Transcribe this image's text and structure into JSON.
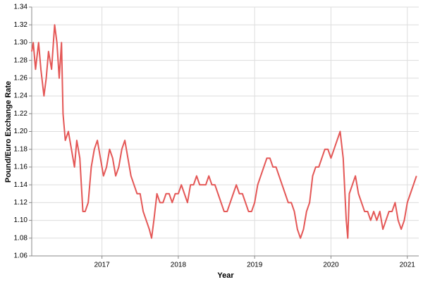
{
  "chart_data": {
    "type": "line",
    "x_label": "Year",
    "y_label": "Pound/Euro Exchange Rate",
    "x": [
      2016.08,
      2016.1,
      2016.13,
      2016.17,
      2016.2,
      2016.24,
      2016.27,
      2016.3,
      2016.34,
      2016.38,
      2016.41,
      2016.44,
      2016.47,
      2016.49,
      2016.52,
      2016.56,
      2016.6,
      2016.64,
      2016.67,
      2016.71,
      2016.75,
      2016.78,
      2016.82,
      2016.86,
      2016.9,
      2016.94,
      2016.98,
      2017.02,
      2017.06,
      2017.1,
      2017.14,
      2017.18,
      2017.22,
      2017.26,
      2017.3,
      2017.34,
      2017.38,
      2017.42,
      2017.46,
      2017.5,
      2017.54,
      2017.58,
      2017.62,
      2017.65,
      2017.68,
      2017.72,
      2017.76,
      2017.8,
      2017.84,
      2017.88,
      2017.92,
      2017.96,
      2018.0,
      2018.04,
      2018.08,
      2018.12,
      2018.16,
      2018.2,
      2018.24,
      2018.28,
      2018.32,
      2018.36,
      2018.4,
      2018.44,
      2018.48,
      2018.52,
      2018.56,
      2018.6,
      2018.64,
      2018.68,
      2018.72,
      2018.76,
      2018.8,
      2018.84,
      2018.88,
      2018.92,
      2018.96,
      2019.0,
      2019.04,
      2019.08,
      2019.12,
      2019.16,
      2019.2,
      2019.24,
      2019.28,
      2019.32,
      2019.36,
      2019.4,
      2019.44,
      2019.48,
      2019.52,
      2019.56,
      2019.6,
      2019.64,
      2019.68,
      2019.72,
      2019.76,
      2019.8,
      2019.84,
      2019.88,
      2019.92,
      2019.96,
      2020.0,
      2020.04,
      2020.08,
      2020.12,
      2020.16,
      2020.2,
      2020.22,
      2020.24,
      2020.28,
      2020.32,
      2020.36,
      2020.4,
      2020.44,
      2020.48,
      2020.52,
      2020.56,
      2020.6,
      2020.64,
      2020.68,
      2020.72,
      2020.76,
      2020.8,
      2020.84,
      2020.88,
      2020.92,
      2020.96,
      2021.0,
      2021.04,
      2021.08,
      2021.12
    ],
    "values": [
      1.29,
      1.3,
      1.27,
      1.3,
      1.27,
      1.24,
      1.26,
      1.29,
      1.27,
      1.32,
      1.3,
      1.26,
      1.3,
      1.22,
      1.19,
      1.2,
      1.18,
      1.16,
      1.19,
      1.17,
      1.11,
      1.11,
      1.12,
      1.16,
      1.18,
      1.19,
      1.17,
      1.15,
      1.16,
      1.18,
      1.17,
      1.15,
      1.16,
      1.18,
      1.19,
      1.17,
      1.15,
      1.14,
      1.13,
      1.13,
      1.11,
      1.1,
      1.09,
      1.08,
      1.1,
      1.13,
      1.12,
      1.12,
      1.13,
      1.13,
      1.12,
      1.13,
      1.13,
      1.14,
      1.13,
      1.12,
      1.14,
      1.14,
      1.15,
      1.14,
      1.14,
      1.14,
      1.15,
      1.14,
      1.14,
      1.13,
      1.12,
      1.11,
      1.11,
      1.12,
      1.13,
      1.14,
      1.13,
      1.13,
      1.12,
      1.11,
      1.11,
      1.12,
      1.14,
      1.15,
      1.16,
      1.17,
      1.17,
      1.16,
      1.16,
      1.15,
      1.14,
      1.13,
      1.12,
      1.12,
      1.11,
      1.09,
      1.08,
      1.09,
      1.11,
      1.12,
      1.15,
      1.16,
      1.16,
      1.17,
      1.18,
      1.18,
      1.17,
      1.18,
      1.19,
      1.2,
      1.17,
      1.1,
      1.08,
      1.13,
      1.14,
      1.15,
      1.13,
      1.12,
      1.11,
      1.11,
      1.1,
      1.11,
      1.1,
      1.11,
      1.09,
      1.1,
      1.11,
      1.11,
      1.12,
      1.1,
      1.09,
      1.1,
      1.12,
      1.13,
      1.14,
      1.15
    ],
    "color": "#e45756",
    "xlim": [
      2016.08,
      2021.15
    ],
    "xticks": [
      2017,
      2018,
      2019,
      2020,
      2021
    ],
    "ylim": [
      1.06,
      1.34
    ],
    "yticks": [
      1.06,
      1.08,
      {
        "value": 1.1,
        "label": "1.10"
      },
      1.12,
      1.14,
      1.16,
      1.18,
      {
        "value": 1.2,
        "label": "1.20"
      },
      1.22,
      1.24,
      1.26,
      1.28,
      {
        "value": 1.3,
        "label": "1.30"
      },
      1.32,
      1.34
    ],
    "grid": true
  }
}
